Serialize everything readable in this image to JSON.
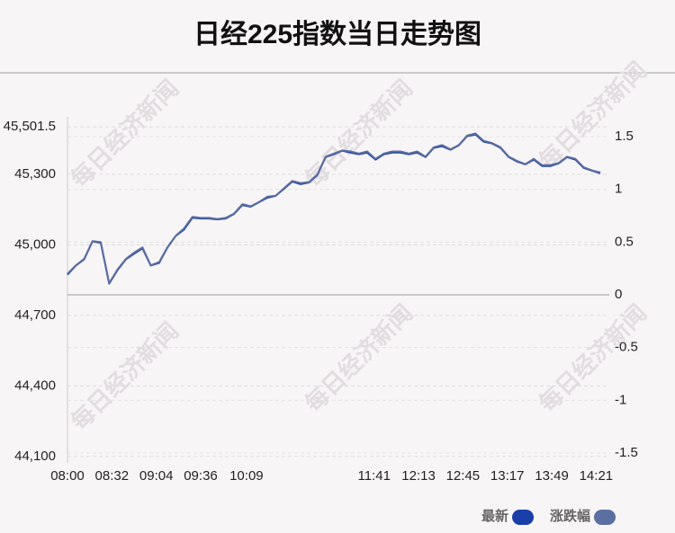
{
  "chart_data": {
    "type": "line",
    "title": "日经225指数当日走势图",
    "watermark": "每日经济新闻",
    "x": [
      "08:00",
      "08:06",
      "08:12",
      "08:18",
      "08:24",
      "08:30",
      "08:36",
      "08:42",
      "08:48",
      "08:54",
      "09:00",
      "09:06",
      "09:12",
      "09:18",
      "09:24",
      "09:30",
      "09:36",
      "09:42",
      "09:48",
      "09:54",
      "10:00",
      "10:06",
      "10:12",
      "10:18",
      "10:24",
      "10:30",
      "10:36",
      "10:42",
      "10:48",
      "10:54",
      "11:00",
      "11:06",
      "11:12",
      "11:18",
      "11:24",
      "11:30",
      "11:36",
      "11:42",
      "11:48",
      "11:54",
      "12:00",
      "12:06",
      "12:12",
      "12:18",
      "12:24",
      "12:30",
      "12:36",
      "12:42",
      "12:48",
      "12:54",
      "13:00",
      "13:06",
      "13:12",
      "13:18",
      "13:24",
      "13:30",
      "13:36",
      "13:42",
      "13:48",
      "13:54",
      "14:00",
      "14:06",
      "14:12",
      "14:18",
      "14:24"
    ],
    "xticks": [
      "08:00",
      "08:32",
      "09:04",
      "09:36",
      "10:09",
      "11:41",
      "12:13",
      "12:45",
      "13:17",
      "13:49",
      "14:21"
    ],
    "series": [
      {
        "name": "最新",
        "color": "#1a3fa8",
        "values": [
          44873,
          44912,
          44938,
          45015,
          45008,
          44835,
          44892,
          44938,
          44962,
          44985,
          44912,
          44923,
          44988,
          45038,
          45065,
          45115,
          45112,
          45112,
          45108,
          45112,
          45131,
          45169,
          45162,
          45181,
          45200,
          45208,
          45238,
          45269,
          45258,
          45265,
          45296,
          45373,
          45385,
          45400,
          45392,
          45385,
          45392,
          45362,
          45385,
          45392,
          45392,
          45385,
          45392,
          45373,
          45412,
          45419,
          45404,
          45423,
          45462,
          45469,
          45438,
          45431,
          45412,
          45373,
          45354,
          45342,
          45362,
          45335,
          45335,
          45346,
          45373,
          45362,
          45327,
          45315,
          45304
        ]
      },
      {
        "name": "涨跌幅",
        "color": "#5b6fa0",
        "axis": "y2",
        "values": [
          0.2,
          0.28,
          0.34,
          0.51,
          0.5,
          0.11,
          0.24,
          0.34,
          0.4,
          0.45,
          0.28,
          0.31,
          0.45,
          0.56,
          0.63,
          0.74,
          0.73,
          0.73,
          0.72,
          0.73,
          0.77,
          0.86,
          0.84,
          0.88,
          0.93,
          0.94,
          1.01,
          1.08,
          1.06,
          1.07,
          1.14,
          1.31,
          1.34,
          1.37,
          1.36,
          1.34,
          1.36,
          1.29,
          1.34,
          1.36,
          1.36,
          1.34,
          1.36,
          1.31,
          1.4,
          1.42,
          1.38,
          1.42,
          1.51,
          1.53,
          1.46,
          1.44,
          1.4,
          1.31,
          1.27,
          1.24,
          1.29,
          1.23,
          1.23,
          1.25,
          1.31,
          1.29,
          1.21,
          1.18,
          1.16
        ]
      }
    ],
    "ylim": [
      44073,
      45544
    ],
    "yticks": [
      {
        "value": 44100,
        "label": "44,100"
      },
      {
        "value": 44400,
        "label": "44,400"
      },
      {
        "value": 44700,
        "label": "44,700"
      },
      {
        "value": 45000,
        "label": "45,000"
      },
      {
        "value": 45300,
        "label": "45,300"
      },
      {
        "value": 45501.5,
        "label": "45,501.5"
      }
    ],
    "y2lim": [
      -1.594,
      1.688
    ],
    "y2ticks": [
      -1.5,
      -1,
      -0.5,
      0,
      0.5,
      1,
      1.5
    ],
    "grid": true
  }
}
